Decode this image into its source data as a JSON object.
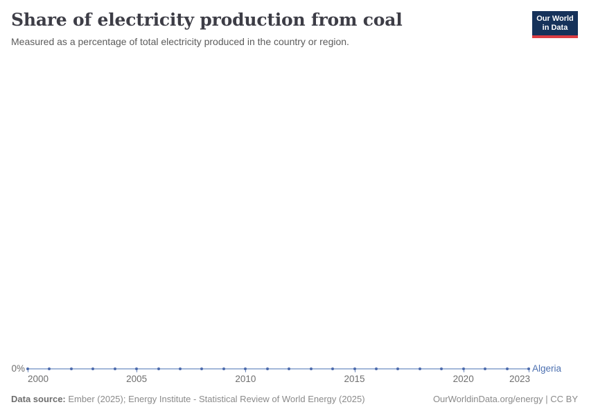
{
  "header": {
    "title": "Share of electricity production from coal",
    "subtitle": "Measured as a percentage of total electricity produced in the country or region."
  },
  "logo": {
    "line1": "Our World",
    "line2": "in Data",
    "bg_color": "#16325a",
    "accent_color": "#dc3d43"
  },
  "chart_data": {
    "type": "line",
    "title": "Share of electricity production from coal",
    "subtitle": "Measured as a percentage of total electricity produced in the country or region.",
    "x": [
      2000,
      2001,
      2002,
      2003,
      2004,
      2005,
      2006,
      2007,
      2008,
      2009,
      2010,
      2011,
      2012,
      2013,
      2014,
      2015,
      2016,
      2017,
      2018,
      2019,
      2020,
      2021,
      2022,
      2023
    ],
    "series": [
      {
        "name": "Algeria",
        "values": [
          0,
          0,
          0,
          0,
          0,
          0,
          0,
          0,
          0,
          0,
          0,
          0,
          0,
          0,
          0,
          0,
          0,
          0,
          0,
          0,
          0,
          0,
          0,
          0
        ],
        "line_color": "#a3b7d9",
        "dot_color": "#4c6bac",
        "label_color": "#4c70b0"
      }
    ],
    "x_ticks": [
      2000,
      2005,
      2010,
      2015,
      2020,
      2023
    ],
    "x_range": [
      2000,
      2023
    ],
    "y_ticks": [
      "0%"
    ],
    "ylim": [
      0,
      0
    ],
    "grid": false,
    "legend_position": "end-of-line"
  },
  "axis": {
    "y_zero_label": "0%",
    "tick_color": "#6d87ba"
  },
  "entity": {
    "label": "Algeria"
  },
  "footer": {
    "source_label": "Data source:",
    "source_text": " Ember (2025); Energy Institute - Statistical Review of World Energy (2025)",
    "note": "OurWorldinData.org/energy | CC BY"
  }
}
